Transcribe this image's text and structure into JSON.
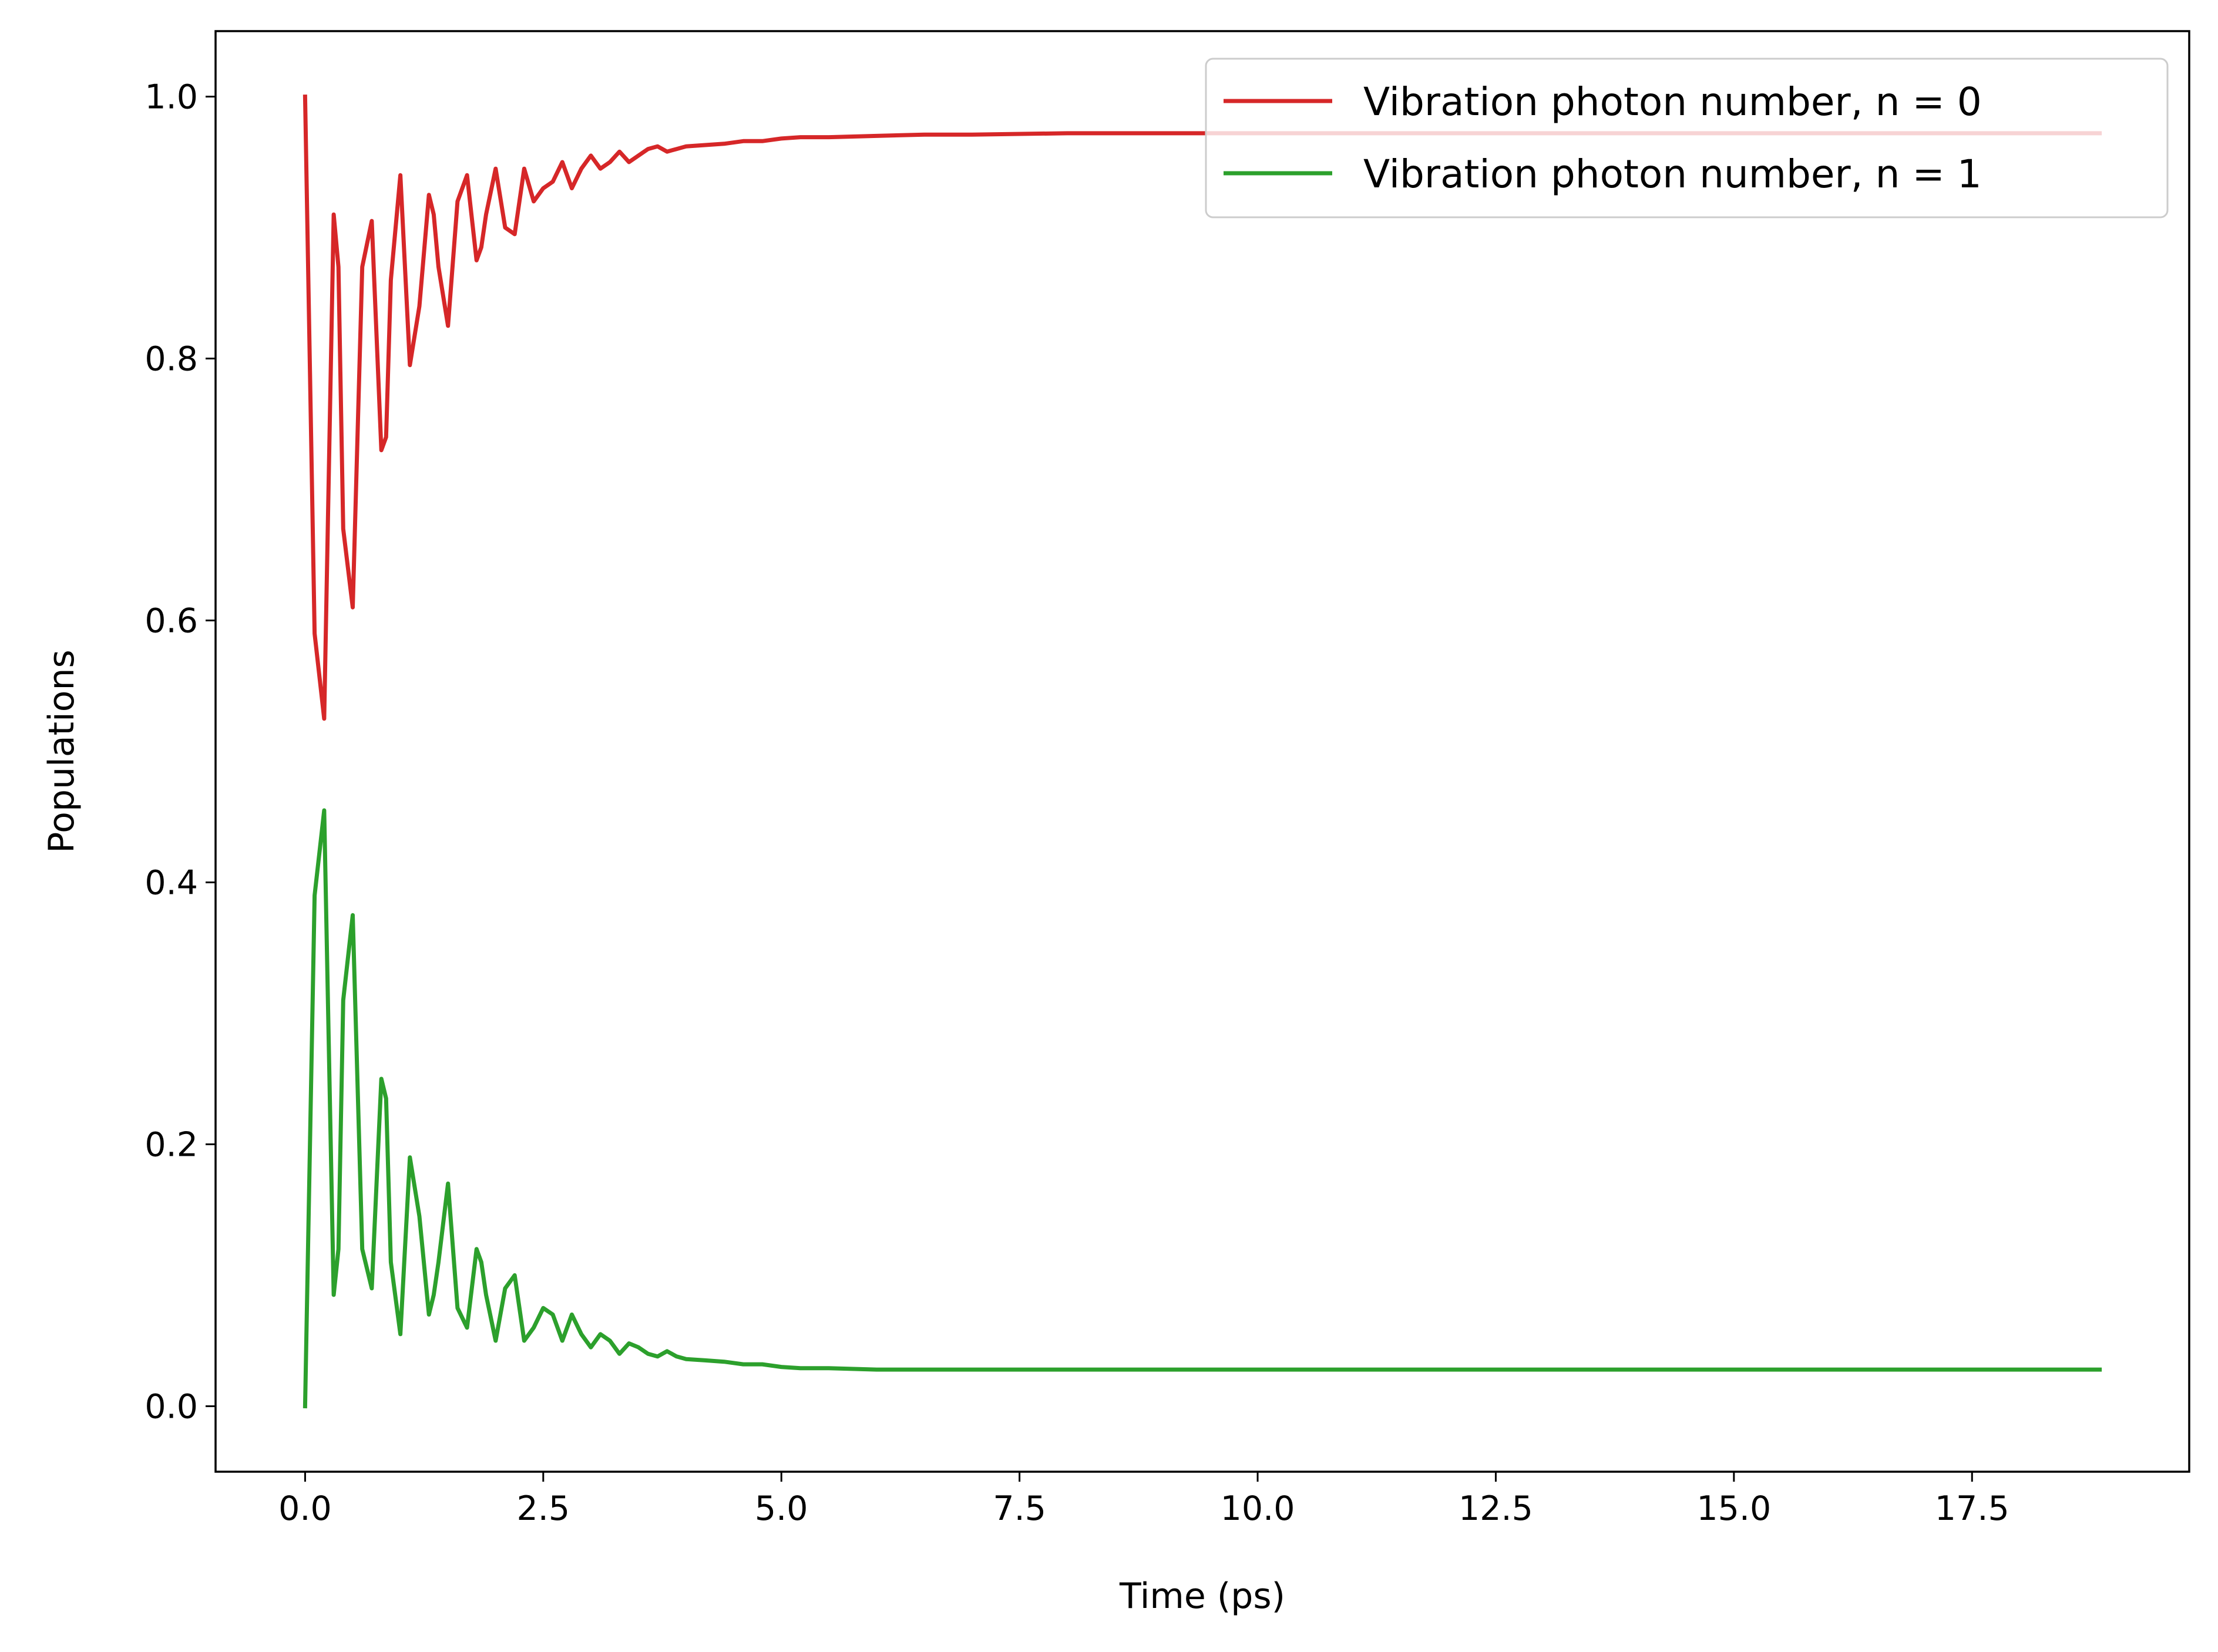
{
  "chart_data": {
    "type": "line",
    "title": "",
    "xlabel": "Time (ps)",
    "ylabel": "Populations",
    "xlim": [
      -0.94,
      19.78
    ],
    "ylim": [
      -0.05,
      1.05
    ],
    "xticks": [
      0.0,
      2.5,
      5.0,
      7.5,
      10.0,
      12.5,
      15.0,
      17.5
    ],
    "xtick_labels": [
      "0.0",
      "2.5",
      "5.0",
      "7.5",
      "10.0",
      "12.5",
      "15.0",
      "17.5"
    ],
    "yticks": [
      0.0,
      0.2,
      0.4,
      0.6,
      0.8,
      1.0
    ],
    "ytick_labels": [
      "0.0",
      "0.2",
      "0.4",
      "0.6",
      "0.8",
      "1.0"
    ],
    "grid": false,
    "legend_position": "top-right",
    "series": [
      {
        "name": "Vibration photon number, n = 0",
        "color": "#d62728",
        "x": [
          0.0,
          0.1,
          0.2,
          0.3,
          0.35,
          0.4,
          0.5,
          0.6,
          0.7,
          0.8,
          0.85,
          0.9,
          1.0,
          1.1,
          1.2,
          1.3,
          1.35,
          1.4,
          1.5,
          1.6,
          1.7,
          1.8,
          1.85,
          1.9,
          2.0,
          2.1,
          2.2,
          2.3,
          2.4,
          2.5,
          2.6,
          2.7,
          2.8,
          2.9,
          3.0,
          3.1,
          3.2,
          3.3,
          3.4,
          3.5,
          3.6,
          3.7,
          3.8,
          3.9,
          4.0,
          4.2,
          4.4,
          4.6,
          4.8,
          5.0,
          5.2,
          5.5,
          6.0,
          6.5,
          7.0,
          8.0,
          9.0,
          10.0,
          12.0,
          15.0,
          18.84
        ],
        "y": [
          1.0,
          0.59,
          0.525,
          0.91,
          0.87,
          0.67,
          0.61,
          0.87,
          0.905,
          0.73,
          0.74,
          0.86,
          0.94,
          0.795,
          0.84,
          0.925,
          0.91,
          0.87,
          0.825,
          0.92,
          0.94,
          0.875,
          0.885,
          0.91,
          0.945,
          0.9,
          0.895,
          0.945,
          0.92,
          0.93,
          0.935,
          0.95,
          0.93,
          0.945,
          0.955,
          0.945,
          0.95,
          0.958,
          0.95,
          0.955,
          0.96,
          0.962,
          0.958,
          0.96,
          0.962,
          0.963,
          0.964,
          0.966,
          0.966,
          0.968,
          0.969,
          0.969,
          0.97,
          0.971,
          0.971,
          0.972,
          0.972,
          0.972,
          0.972,
          0.972,
          0.972
        ]
      },
      {
        "name": "Vibration photon number, n = 1",
        "color": "#2ca02c",
        "x": [
          0.0,
          0.1,
          0.2,
          0.3,
          0.35,
          0.4,
          0.5,
          0.6,
          0.7,
          0.8,
          0.85,
          0.9,
          1.0,
          1.1,
          1.2,
          1.3,
          1.35,
          1.4,
          1.5,
          1.6,
          1.7,
          1.8,
          1.85,
          1.9,
          2.0,
          2.1,
          2.2,
          2.3,
          2.4,
          2.5,
          2.6,
          2.7,
          2.8,
          2.9,
          3.0,
          3.1,
          3.2,
          3.3,
          3.4,
          3.5,
          3.6,
          3.7,
          3.8,
          3.9,
          4.0,
          4.2,
          4.4,
          4.6,
          4.8,
          5.0,
          5.2,
          5.5,
          6.0,
          6.5,
          7.0,
          8.0,
          9.0,
          10.0,
          12.0,
          15.0,
          18.84
        ],
        "y": [
          0.0,
          0.39,
          0.455,
          0.085,
          0.12,
          0.31,
          0.375,
          0.12,
          0.09,
          0.25,
          0.235,
          0.11,
          0.055,
          0.19,
          0.145,
          0.07,
          0.085,
          0.11,
          0.17,
          0.075,
          0.06,
          0.12,
          0.11,
          0.085,
          0.05,
          0.09,
          0.1,
          0.05,
          0.06,
          0.075,
          0.07,
          0.05,
          0.07,
          0.055,
          0.045,
          0.055,
          0.05,
          0.04,
          0.048,
          0.045,
          0.04,
          0.038,
          0.042,
          0.038,
          0.036,
          0.035,
          0.034,
          0.032,
          0.032,
          0.03,
          0.029,
          0.029,
          0.028,
          0.028,
          0.028,
          0.028,
          0.028,
          0.028,
          0.028,
          0.028,
          0.028
        ]
      }
    ]
  }
}
